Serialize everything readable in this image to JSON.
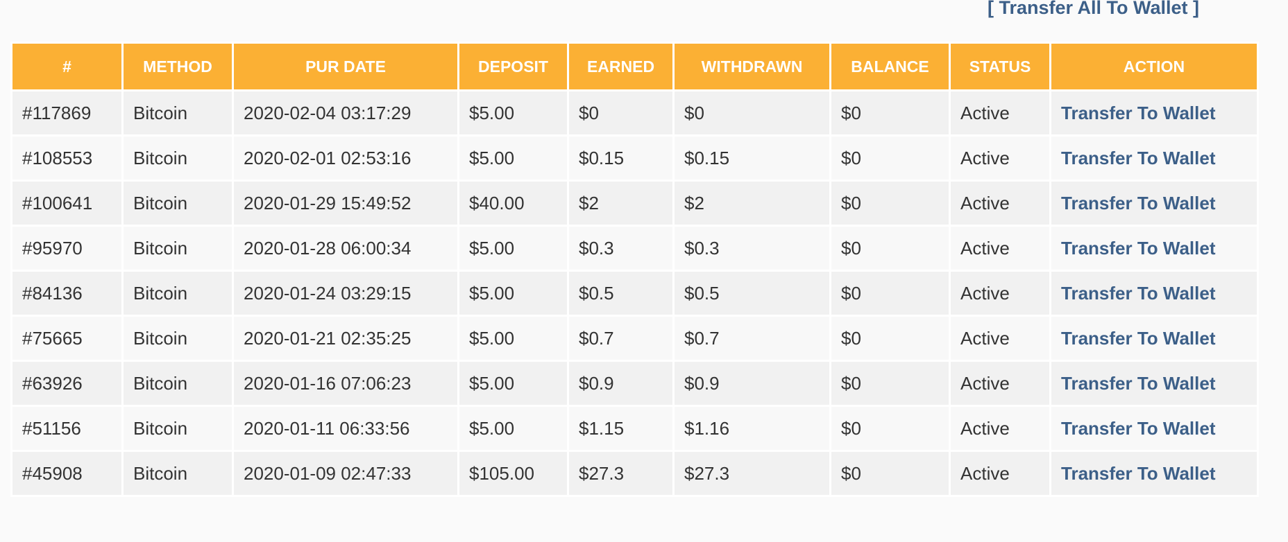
{
  "header_link": "[ Transfer All To Wallet ]",
  "table": {
    "columns": [
      "#",
      "METHOD",
      "PUR DATE",
      "DEPOSIT",
      "EARNED",
      "WITHDRAWN",
      "BALANCE",
      "STATUS",
      "ACTION"
    ],
    "rows": [
      [
        "#117869",
        "Bitcoin",
        "2020-02-04 03:17:29",
        "$5.00",
        "$0",
        "$0",
        "$0",
        "Active",
        "Transfer To Wallet"
      ],
      [
        "#108553",
        "Bitcoin",
        "2020-02-01 02:53:16",
        "$5.00",
        "$0.15",
        "$0.15",
        "$0",
        "Active",
        "Transfer To Wallet"
      ],
      [
        "#100641",
        "Bitcoin",
        "2020-01-29 15:49:52",
        "$40.00",
        "$2",
        "$2",
        "$0",
        "Active",
        "Transfer To Wallet"
      ],
      [
        "#95970",
        "Bitcoin",
        "2020-01-28 06:00:34",
        "$5.00",
        "$0.3",
        "$0.3",
        "$0",
        "Active",
        "Transfer To Wallet"
      ],
      [
        "#84136",
        "Bitcoin",
        "2020-01-24 03:29:15",
        "$5.00",
        "$0.5",
        "$0.5",
        "$0",
        "Active",
        "Transfer To Wallet"
      ],
      [
        "#75665",
        "Bitcoin",
        "2020-01-21 02:35:25",
        "$5.00",
        "$0.7",
        "$0.7",
        "$0",
        "Active",
        "Transfer To Wallet"
      ],
      [
        "#63926",
        "Bitcoin",
        "2020-01-16 07:06:23",
        "$5.00",
        "$0.9",
        "$0.9",
        "$0",
        "Active",
        "Transfer To Wallet"
      ],
      [
        "#51156",
        "Bitcoin",
        "2020-01-11 06:33:56",
        "$5.00",
        "$1.15",
        "$1.16",
        "$0",
        "Active",
        "Transfer To Wallet"
      ],
      [
        "#45908",
        "Bitcoin",
        "2020-01-09 02:47:33",
        "$105.00",
        "$27.3",
        "$27.3",
        "$0",
        "Active",
        "Transfer To Wallet"
      ]
    ]
  }
}
